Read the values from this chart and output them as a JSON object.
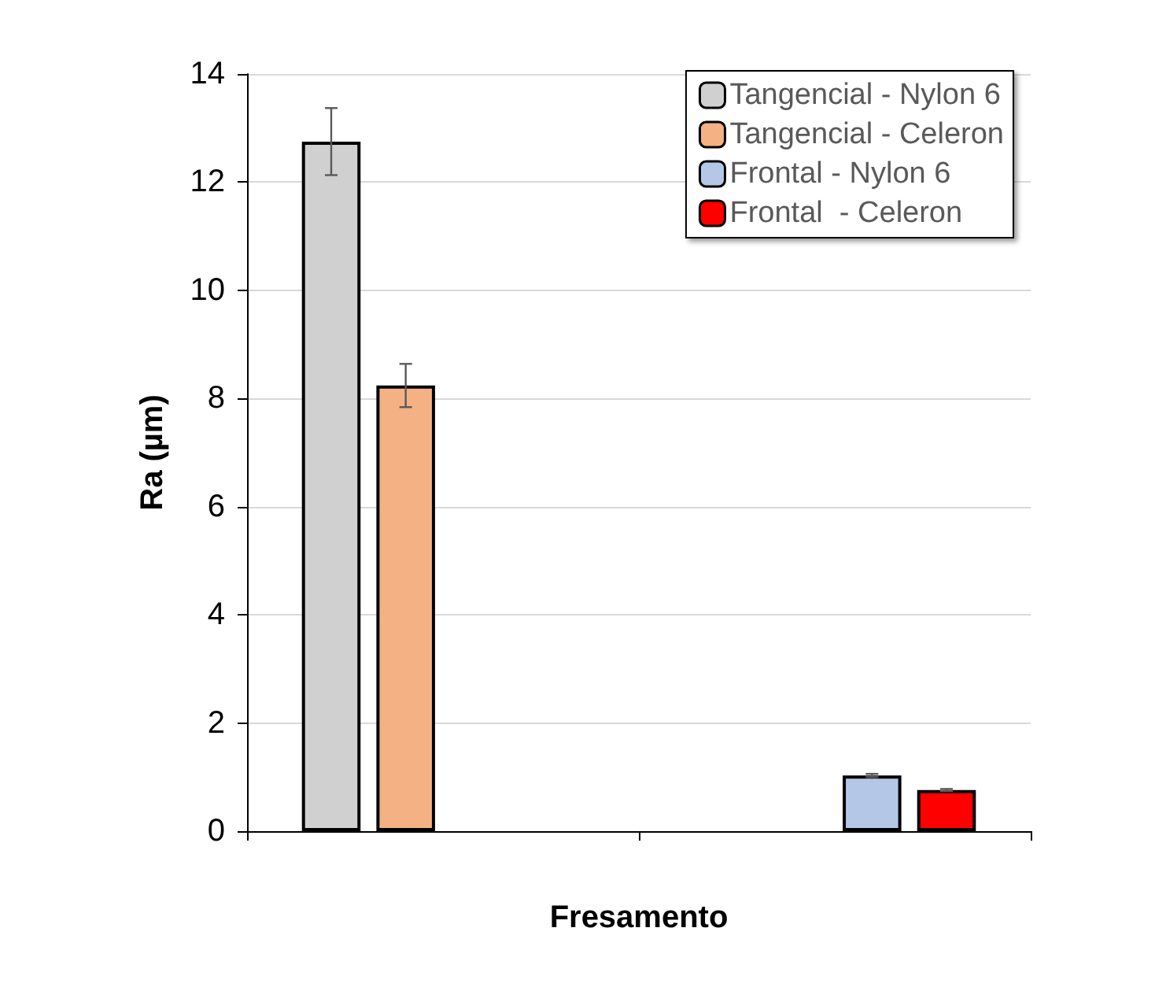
{
  "chart_data": {
    "type": "bar",
    "xlabel": "Fresamento",
    "ylabel": "Ra (µm)",
    "categories": [
      null,
      null
    ],
    "series": [
      {
        "name": "Tangencial - Nylon 6",
        "color": "#d0d0d0",
        "values": [
          12.75,
          null
        ],
        "errors": [
          0.62,
          null
        ]
      },
      {
        "name": "Tangencial - Celeron",
        "color": "#f4b183",
        "values": [
          8.24,
          null
        ],
        "errors": [
          0.4,
          null
        ]
      },
      {
        "name": "Frontal - Nylon 6",
        "color": "#b4c7e7",
        "values": [
          null,
          1.03
        ],
        "errors": [
          null,
          0.03
        ]
      },
      {
        "name": "Frontal  - Celeron",
        "color": "#ff0000",
        "values": [
          null,
          0.76
        ],
        "errors": [
          null,
          0.02
        ]
      }
    ],
    "ylim": [
      0,
      14
    ],
    "yticks": [
      0,
      2,
      4,
      6,
      8,
      10,
      12,
      14
    ],
    "grid": "y",
    "legend": "top right"
  }
}
